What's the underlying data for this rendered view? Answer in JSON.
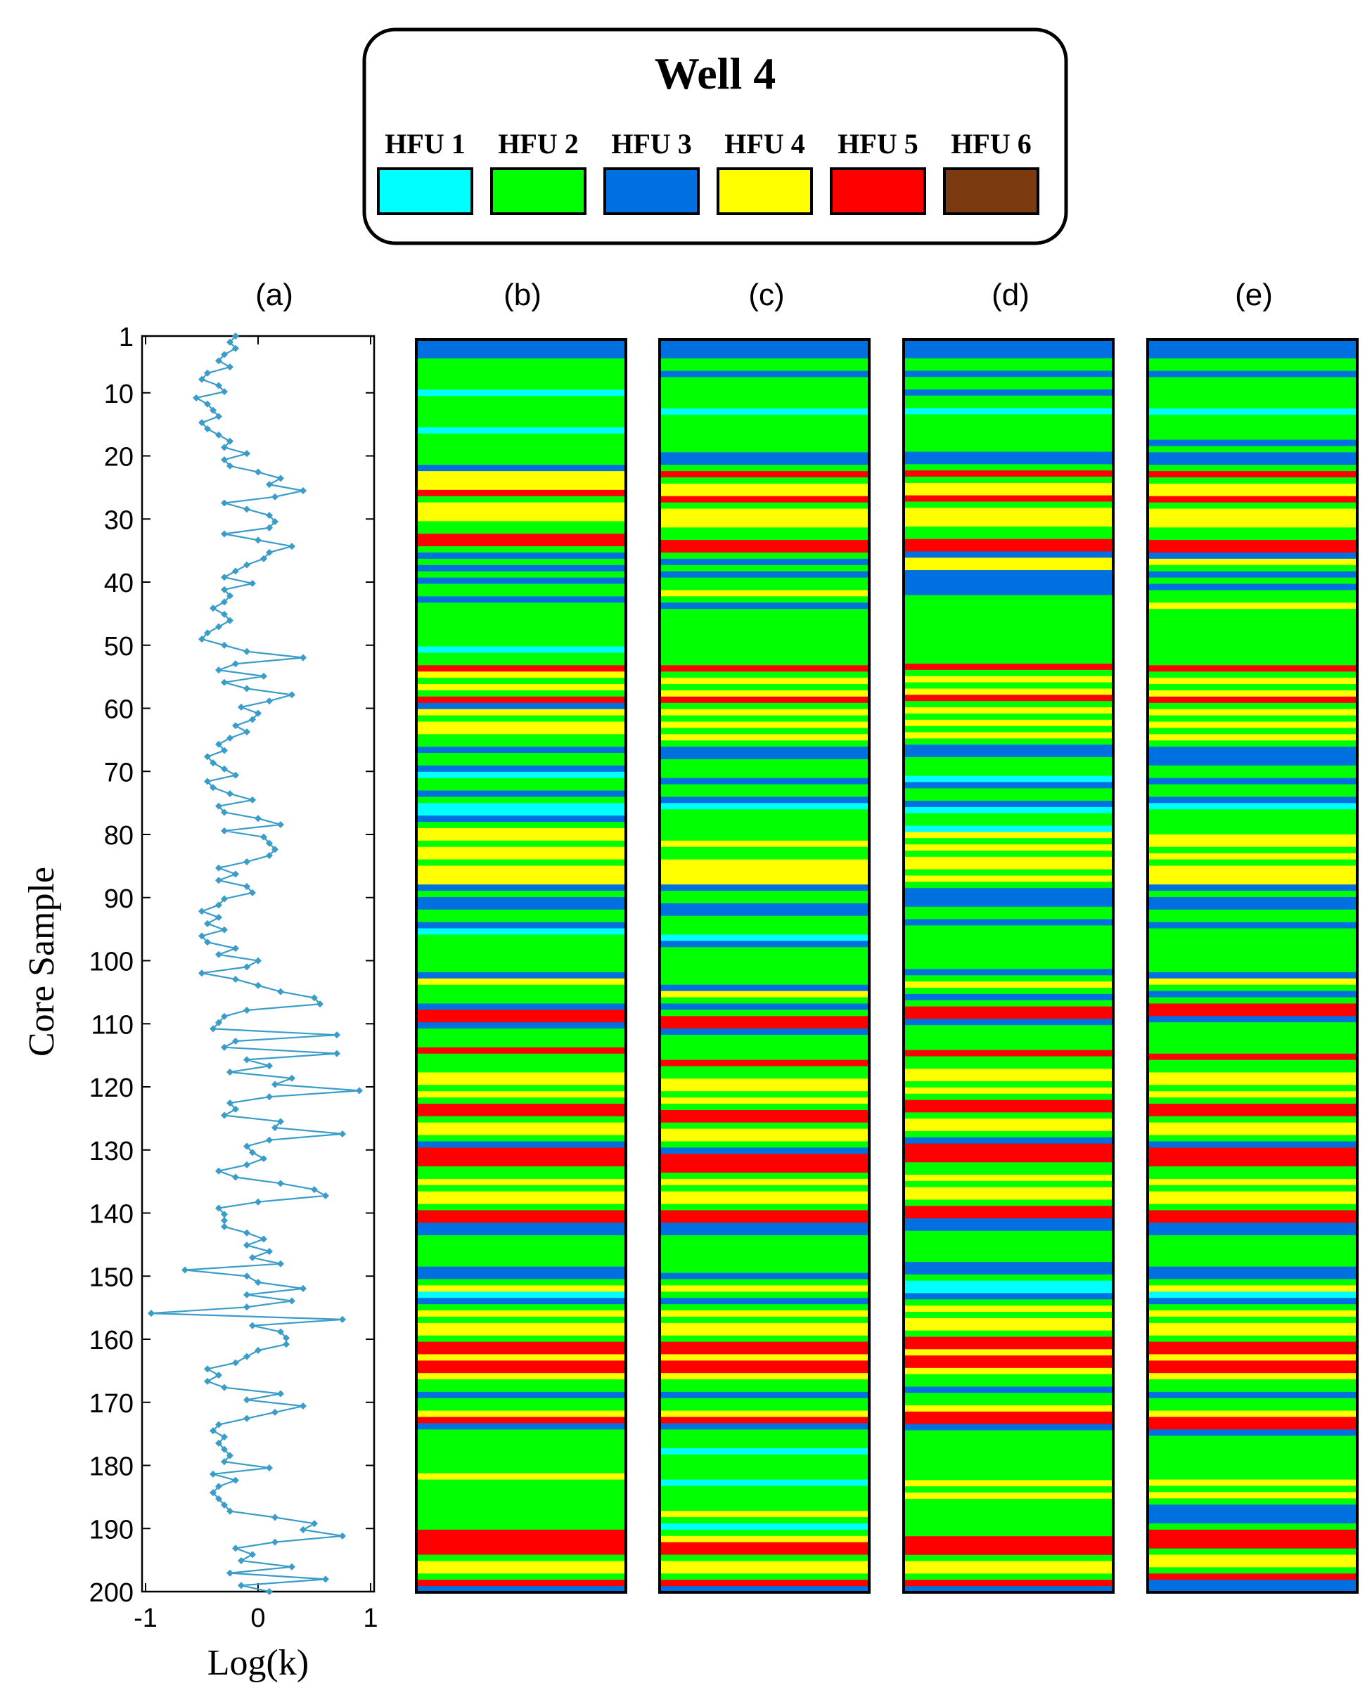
{
  "legend": {
    "title": "Well 4",
    "items": [
      {
        "label": "HFU 1",
        "color": "#00FFFF"
      },
      {
        "label": "HFU 2",
        "color": "#00FF00"
      },
      {
        "label": "HFU 3",
        "color": "#0070E0"
      },
      {
        "label": "HFU 4",
        "color": "#FFFF00"
      },
      {
        "label": "HFU 5",
        "color": "#FF0000"
      },
      {
        "label": "HFU 6",
        "color": "#7B3A10"
      }
    ]
  },
  "chart_data": [
    {
      "type": "line",
      "panel": "(a)",
      "xlabel": "Log(k)",
      "ylabel": "Core Sample",
      "xlim": [
        -1,
        1
      ],
      "ylim": [
        1,
        200
      ],
      "y_inverted": true,
      "xticks": [
        -1,
        0,
        1
      ],
      "yticks": [
        1,
        10,
        20,
        30,
        40,
        50,
        60,
        70,
        80,
        90,
        100,
        110,
        120,
        130,
        140,
        150,
        160,
        170,
        180,
        190,
        200
      ],
      "series_color": "#3A9CC8",
      "x": [
        -0.2,
        -0.25,
        -0.2,
        -0.3,
        -0.35,
        -0.25,
        -0.45,
        -0.5,
        -0.35,
        -0.3,
        -0.55,
        -0.45,
        -0.4,
        -0.35,
        -0.5,
        -0.45,
        -0.35,
        -0.25,
        -0.3,
        -0.1,
        -0.3,
        -0.25,
        0,
        0.2,
        0.1,
        0.4,
        0.15,
        -0.3,
        -0.1,
        0.1,
        0.15,
        0.1,
        -0.3,
        0,
        0.3,
        0.1,
        0.05,
        -0.1,
        -0.2,
        -0.3,
        -0.05,
        -0.3,
        -0.25,
        -0.3,
        -0.4,
        -0.3,
        -0.25,
        -0.35,
        -0.45,
        -0.5,
        -0.3,
        -0.1,
        0.4,
        -0.2,
        -0.35,
        0.05,
        -0.3,
        -0.1,
        0.3,
        0.1,
        -0.15,
        0,
        -0.05,
        -0.2,
        -0.1,
        -0.25,
        -0.35,
        -0.3,
        -0.45,
        -0.4,
        -0.3,
        -0.2,
        -0.45,
        -0.4,
        -0.25,
        -0.05,
        -0.35,
        -0.3,
        0,
        0.2,
        -0.3,
        0.05,
        0.1,
        0.15,
        0.1,
        -0.1,
        -0.35,
        -0.2,
        -0.35,
        -0.1,
        -0.05,
        -0.3,
        -0.35,
        -0.5,
        -0.35,
        -0.45,
        -0.3,
        -0.5,
        -0.45,
        -0.2,
        -0.35,
        0,
        -0.1,
        -0.5,
        -0.2,
        0,
        0.2,
        0.5,
        0.55,
        -0.1,
        -0.3,
        -0.35,
        -0.4,
        0.7,
        -0.2,
        -0.3,
        0.7,
        -0.1,
        0.1,
        -0.25,
        0.3,
        0.15,
        0.9,
        0.1,
        -0.25,
        -0.2,
        -0.3,
        0.2,
        0.15,
        0.75,
        0.1,
        -0.1,
        -0.05,
        0.05,
        -0.1,
        -0.35,
        -0.2,
        0.2,
        0.5,
        0.6,
        0,
        -0.35,
        -0.3,
        -0.3,
        -0.3,
        -0.1,
        0.05,
        -0.1,
        0.1,
        -0.05,
        0.2,
        -0.65,
        -0.1,
        0,
        0.4,
        -0.1,
        0.3,
        -0.1,
        -0.95,
        0.75,
        -0.05,
        0.2,
        0.25,
        0.25,
        0,
        -0.1,
        -0.2,
        -0.45,
        -0.35,
        -0.45,
        -0.3,
        0.2,
        -0.1,
        0.4,
        0.15,
        -0.1,
        -0.35,
        -0.4,
        -0.3,
        -0.35,
        -0.3,
        -0.25,
        -0.3,
        0.1,
        -0.4,
        -0.2,
        -0.35,
        -0.4,
        -0.35,
        -0.3,
        -0.25,
        0.15,
        0.5,
        0.4,
        0.75,
        0.15,
        -0.2,
        -0.05,
        -0.15,
        0.3,
        -0.25,
        0.6,
        -0.15,
        0.1
      ]
    },
    {
      "type": "heatmap",
      "panels": [
        "(b)",
        "(c)",
        "(d)",
        "(e)"
      ],
      "ylim": [
        1,
        200
      ],
      "y_inverted": true,
      "note": "HFU class (1-6) per core sample for each panel",
      "classes_by_panel": {
        "(b)": [
          3,
          3,
          3,
          2,
          2,
          2,
          2,
          2,
          1,
          2,
          2,
          2,
          2,
          2,
          1,
          2,
          2,
          2,
          2,
          2,
          3,
          4,
          4,
          4,
          5,
          2,
          4,
          4,
          4,
          2,
          2,
          5,
          5,
          2,
          3,
          2,
          3,
          2,
          3,
          2,
          2,
          3,
          2,
          2,
          2,
          2,
          2,
          2,
          2,
          1,
          2,
          2,
          5,
          4,
          2,
          4,
          2,
          5,
          3,
          4,
          2,
          4,
          4,
          2,
          2,
          3,
          2,
          2,
          3,
          1,
          2,
          2,
          3,
          2,
          1,
          1,
          3,
          2,
          4,
          4,
          2,
          4,
          4,
          2,
          4,
          4,
          4,
          3,
          2,
          3,
          3,
          2,
          2,
          3,
          1,
          2,
          2,
          2,
          2,
          2,
          2,
          3,
          4,
          2,
          2,
          2,
          3,
          5,
          5,
          3,
          2,
          2,
          2,
          5,
          2,
          2,
          2,
          4,
          4,
          2,
          4,
          2,
          5,
          5,
          2,
          4,
          4,
          2,
          3,
          5,
          5,
          5,
          2,
          2,
          4,
          2,
          4,
          4,
          2,
          5,
          5,
          3,
          3,
          2,
          2,
          2,
          2,
          2,
          3,
          3,
          2,
          4,
          1,
          3,
          2,
          4,
          2,
          4,
          4,
          2,
          5,
          5,
          4,
          5,
          5,
          4,
          2,
          2,
          3,
          2,
          2,
          4,
          5,
          3,
          2,
          2,
          2,
          2,
          2,
          2,
          2,
          4,
          2,
          2,
          2,
          2,
          2,
          2,
          2,
          2,
          5,
          5,
          5,
          5,
          2,
          4,
          4,
          2,
          5,
          3
        ],
        "(c)": [
          3,
          3,
          3,
          2,
          2,
          3,
          2,
          2,
          2,
          2,
          2,
          1,
          2,
          2,
          2,
          2,
          2,
          2,
          3,
          3,
          2,
          5,
          2,
          4,
          4,
          5,
          2,
          4,
          4,
          4,
          2,
          2,
          5,
          5,
          2,
          3,
          2,
          3,
          2,
          2,
          4,
          2,
          3,
          2,
          2,
          2,
          2,
          2,
          2,
          2,
          2,
          2,
          5,
          2,
          4,
          2,
          4,
          5,
          2,
          4,
          2,
          4,
          2,
          4,
          2,
          3,
          3,
          2,
          2,
          2,
          3,
          2,
          2,
          3,
          1,
          2,
          2,
          2,
          2,
          2,
          4,
          2,
          2,
          4,
          4,
          4,
          4,
          3,
          2,
          2,
          3,
          3,
          2,
          2,
          2,
          1,
          3,
          2,
          2,
          2,
          2,
          2,
          2,
          3,
          4,
          2,
          3,
          2,
          5,
          5,
          3,
          2,
          2,
          2,
          2,
          5,
          2,
          2,
          4,
          4,
          2,
          4,
          2,
          5,
          5,
          2,
          4,
          4,
          2,
          3,
          5,
          5,
          5,
          2,
          4,
          2,
          4,
          4,
          2,
          5,
          5,
          3,
          3,
          2,
          2,
          2,
          2,
          2,
          2,
          3,
          2,
          4,
          2,
          3,
          2,
          4,
          2,
          4,
          4,
          2,
          5,
          5,
          4,
          5,
          5,
          4,
          2,
          2,
          3,
          2,
          2,
          4,
          5,
          3,
          2,
          2,
          2,
          1,
          2,
          2,
          2,
          2,
          1,
          2,
          2,
          2,
          2,
          4,
          2,
          1,
          2,
          4,
          5,
          5,
          2,
          4,
          4,
          2,
          5,
          3
        ],
        "(d)": [
          3,
          3,
          3,
          2,
          2,
          3,
          2,
          2,
          3,
          2,
          2,
          1,
          2,
          2,
          2,
          2,
          2,
          2,
          3,
          3,
          2,
          5,
          2,
          4,
          4,
          5,
          2,
          4,
          4,
          4,
          2,
          2,
          5,
          5,
          3,
          4,
          4,
          3,
          3,
          3,
          3,
          2,
          2,
          2,
          2,
          2,
          2,
          2,
          2,
          2,
          2,
          2,
          5,
          2,
          4,
          2,
          4,
          5,
          2,
          4,
          2,
          4,
          2,
          4,
          2,
          3,
          3,
          2,
          2,
          2,
          1,
          3,
          2,
          2,
          3,
          1,
          2,
          2,
          1,
          4,
          2,
          4,
          2,
          4,
          4,
          2,
          4,
          2,
          3,
          3,
          3,
          2,
          2,
          3,
          2,
          2,
          2,
          2,
          2,
          2,
          2,
          3,
          2,
          4,
          2,
          3,
          2,
          5,
          5,
          3,
          2,
          2,
          2,
          2,
          5,
          2,
          2,
          4,
          4,
          2,
          4,
          2,
          5,
          5,
          2,
          4,
          4,
          2,
          3,
          5,
          5,
          5,
          2,
          2,
          4,
          2,
          4,
          4,
          2,
          5,
          5,
          3,
          3,
          2,
          2,
          2,
          2,
          2,
          3,
          3,
          2,
          1,
          1,
          3,
          2,
          4,
          2,
          4,
          4,
          2,
          5,
          5,
          4,
          5,
          5,
          4,
          2,
          2,
          3,
          2,
          2,
          4,
          5,
          5,
          3,
          2,
          2,
          2,
          2,
          2,
          2,
          2,
          2,
          4,
          2,
          4,
          2,
          2,
          2,
          2,
          2,
          2,
          5,
          5,
          5,
          2,
          4,
          4,
          2,
          5,
          3
        ],
        "(e)": [
          3,
          3,
          3,
          2,
          2,
          3,
          2,
          2,
          2,
          2,
          2,
          1,
          2,
          2,
          2,
          2,
          3,
          2,
          3,
          3,
          2,
          5,
          2,
          4,
          4,
          5,
          2,
          4,
          4,
          4,
          2,
          2,
          5,
          5,
          3,
          4,
          2,
          3,
          2,
          3,
          2,
          2,
          4,
          2,
          2,
          2,
          2,
          2,
          2,
          2,
          2,
          2,
          5,
          2,
          4,
          2,
          4,
          5,
          2,
          4,
          2,
          4,
          2,
          4,
          2,
          3,
          3,
          3,
          2,
          2,
          3,
          2,
          2,
          3,
          1,
          2,
          2,
          2,
          2,
          4,
          4,
          2,
          4,
          2,
          4,
          4,
          4,
          3,
          2,
          3,
          3,
          2,
          2,
          3,
          2,
          2,
          2,
          2,
          2,
          2,
          2,
          3,
          4,
          2,
          3,
          2,
          5,
          5,
          3,
          2,
          2,
          2,
          2,
          2,
          5,
          2,
          2,
          4,
          4,
          2,
          4,
          2,
          5,
          5,
          2,
          4,
          4,
          2,
          3,
          5,
          5,
          5,
          2,
          2,
          4,
          2,
          4,
          4,
          2,
          5,
          5,
          3,
          3,
          2,
          2,
          2,
          2,
          2,
          3,
          3,
          2,
          4,
          1,
          3,
          2,
          4,
          2,
          4,
          4,
          2,
          5,
          5,
          4,
          5,
          5,
          4,
          2,
          2,
          3,
          2,
          2,
          4,
          5,
          5,
          3,
          2,
          2,
          2,
          2,
          2,
          2,
          2,
          4,
          2,
          4,
          2,
          3,
          3,
          3,
          2,
          5,
          5,
          5,
          2,
          4,
          4,
          2,
          5,
          3,
          3
        ]
      }
    }
  ]
}
